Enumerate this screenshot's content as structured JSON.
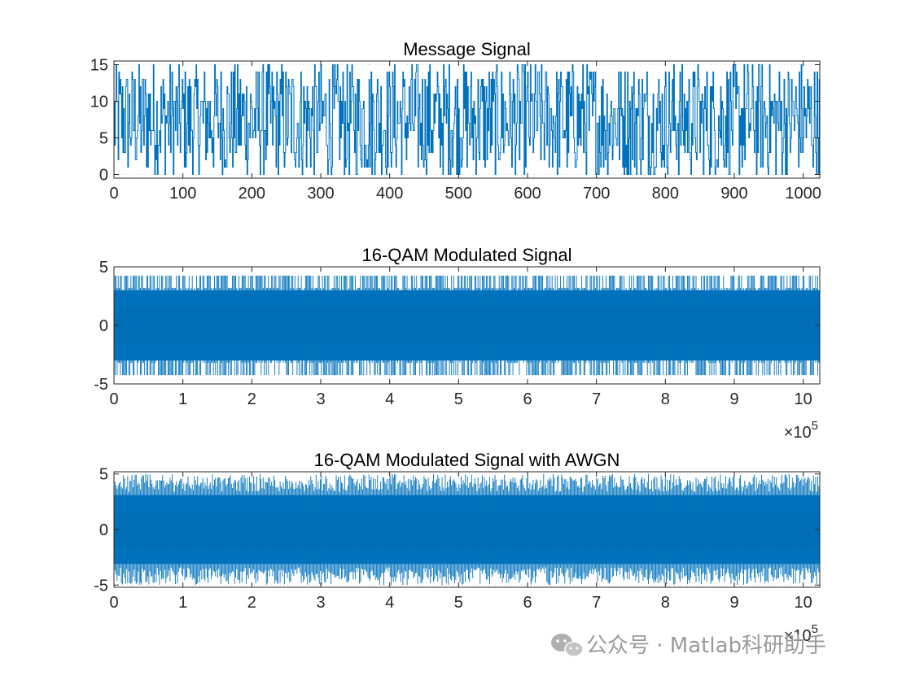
{
  "chart_data": [
    {
      "type": "line",
      "title": "Message Signal",
      "xlim": [
        0,
        1024
      ],
      "ylim": [
        -0.5,
        15.5
      ],
      "xticks": [
        0,
        100,
        200,
        300,
        400,
        500,
        600,
        700,
        800,
        900,
        1000
      ],
      "yticks": [
        0,
        5,
        10,
        15
      ],
      "x_exponent": "",
      "grid": "dotted",
      "series": [
        {
          "style": "stairs",
          "color": "#0072BD",
          "description": "random integer symbols 0-15, 1024 samples",
          "x_range": [
            0,
            1024
          ],
          "value_range": [
            0,
            15
          ],
          "n_points": 1024
        }
      ]
    },
    {
      "type": "line",
      "title": "16-QAM Modulated Signal",
      "xlim": [
        0,
        1024000
      ],
      "ylim": [
        -5,
        5
      ],
      "xticks": [
        0,
        1,
        2,
        3,
        4,
        5,
        6,
        7,
        8,
        9,
        10
      ],
      "yticks": [
        -5,
        0,
        5
      ],
      "x_exponent": "5",
      "grid": "dotted",
      "series": [
        {
          "style": "dense",
          "color": "#0072BD",
          "x_range": [
            0,
            1024000
          ],
          "amplitude_levels": [
            1,
            3,
            4.24
          ],
          "value_range": [
            -4.24,
            4.24
          ]
        }
      ]
    },
    {
      "type": "line",
      "title": "16-QAM Modulated Signal with AWGN",
      "xlim": [
        0,
        1024000
      ],
      "ylim": [
        -5.2,
        5.2
      ],
      "xticks": [
        0,
        1,
        2,
        3,
        4,
        5,
        6,
        7,
        8,
        9,
        10
      ],
      "yticks": [
        -5,
        0,
        5
      ],
      "x_exponent": "5",
      "grid": "dotted",
      "series": [
        {
          "style": "dense-noisy",
          "color": "#0072BD",
          "x_range": [
            0,
            1024000
          ],
          "value_range": [
            -5.0,
            5.0
          ]
        }
      ]
    }
  ],
  "watermark": {
    "text": "公众号 · Matlab科研助手",
    "icon": "wechat-icon"
  }
}
